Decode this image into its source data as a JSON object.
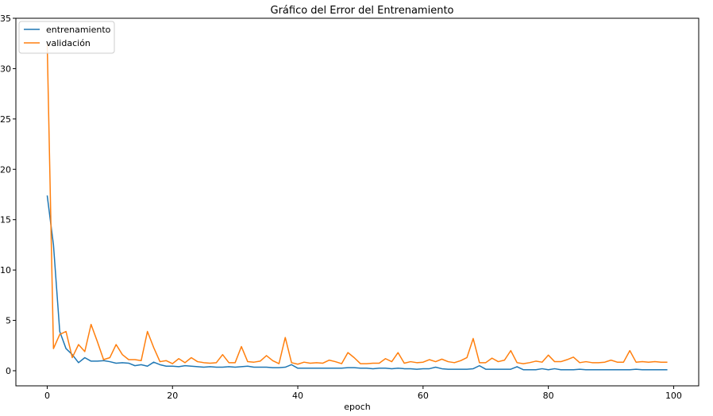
{
  "chart_data": {
    "type": "line",
    "title": "Gráfico del Error del Entrenamiento",
    "xlabel": "epoch",
    "ylabel": "",
    "xlim": [
      -5,
      104
    ],
    "ylim": [
      -1.5,
      35
    ],
    "xticks": [
      0,
      20,
      40,
      60,
      80,
      100
    ],
    "yticks": [
      0,
      5,
      10,
      15,
      20,
      25,
      30,
      35
    ],
    "grid": false,
    "legend_position": "upper left",
    "x": [
      0,
      1,
      2,
      3,
      4,
      5,
      6,
      7,
      8,
      9,
      10,
      11,
      12,
      13,
      14,
      15,
      16,
      17,
      18,
      19,
      20,
      21,
      22,
      23,
      24,
      25,
      26,
      27,
      28,
      29,
      30,
      31,
      32,
      33,
      34,
      35,
      36,
      37,
      38,
      39,
      40,
      41,
      42,
      43,
      44,
      45,
      46,
      47,
      48,
      49,
      50,
      51,
      52,
      53,
      54,
      55,
      56,
      57,
      58,
      59,
      60,
      61,
      62,
      63,
      64,
      65,
      66,
      67,
      68,
      69,
      70,
      71,
      72,
      73,
      74,
      75,
      76,
      77,
      78,
      79,
      80,
      81,
      82,
      83,
      84,
      85,
      86,
      87,
      88,
      89,
      90,
      91,
      92,
      93,
      94,
      95,
      96,
      97,
      98,
      99
    ],
    "series": [
      {
        "name": "entrenamiento",
        "color": "#1f77b4",
        "values": [
          17.4,
          12.5,
          3.9,
          2.2,
          1.6,
          0.8,
          1.3,
          0.95,
          0.95,
          1.0,
          0.9,
          0.75,
          0.8,
          0.75,
          0.5,
          0.6,
          0.45,
          0.85,
          0.6,
          0.45,
          0.45,
          0.4,
          0.5,
          0.45,
          0.4,
          0.35,
          0.4,
          0.35,
          0.35,
          0.4,
          0.35,
          0.4,
          0.45,
          0.35,
          0.35,
          0.35,
          0.3,
          0.3,
          0.35,
          0.6,
          0.25,
          0.25,
          0.25,
          0.25,
          0.25,
          0.25,
          0.25,
          0.25,
          0.3,
          0.3,
          0.25,
          0.25,
          0.2,
          0.25,
          0.25,
          0.2,
          0.25,
          0.2,
          0.2,
          0.15,
          0.2,
          0.2,
          0.35,
          0.2,
          0.15,
          0.15,
          0.15,
          0.15,
          0.2,
          0.5,
          0.15,
          0.15,
          0.15,
          0.15,
          0.15,
          0.4,
          0.1,
          0.1,
          0.1,
          0.2,
          0.1,
          0.2,
          0.1,
          0.1,
          0.1,
          0.15,
          0.1,
          0.1,
          0.1,
          0.1,
          0.1,
          0.1,
          0.1,
          0.1,
          0.15,
          0.1,
          0.1,
          0.1,
          0.1,
          0.1
        ]
      },
      {
        "name": "validación",
        "color": "#ff7f0e",
        "values": [
          32.5,
          2.2,
          3.6,
          3.9,
          1.3,
          2.6,
          1.9,
          4.6,
          2.9,
          1.1,
          1.3,
          2.6,
          1.6,
          1.1,
          1.1,
          1.0,
          3.9,
          2.3,
          0.9,
          1.0,
          0.7,
          1.2,
          0.8,
          1.3,
          0.9,
          0.8,
          0.75,
          0.8,
          1.6,
          0.8,
          0.8,
          2.4,
          0.9,
          0.85,
          0.95,
          1.5,
          1.0,
          0.7,
          3.3,
          0.8,
          0.65,
          0.85,
          0.75,
          0.8,
          0.75,
          1.05,
          0.9,
          0.7,
          1.8,
          1.3,
          0.7,
          0.7,
          0.75,
          0.75,
          1.2,
          0.9,
          1.8,
          0.75,
          0.9,
          0.8,
          0.85,
          1.1,
          0.9,
          1.15,
          0.9,
          0.8,
          1.0,
          1.3,
          3.2,
          0.8,
          0.8,
          1.25,
          0.9,
          1.05,
          2.0,
          0.8,
          0.7,
          0.8,
          0.95,
          0.85,
          1.55,
          0.9,
          0.9,
          1.1,
          1.35,
          0.8,
          0.9,
          0.8,
          0.8,
          0.85,
          1.05,
          0.85,
          0.85,
          2.0,
          0.85,
          0.9,
          0.85,
          0.9,
          0.85,
          0.85
        ]
      }
    ]
  }
}
